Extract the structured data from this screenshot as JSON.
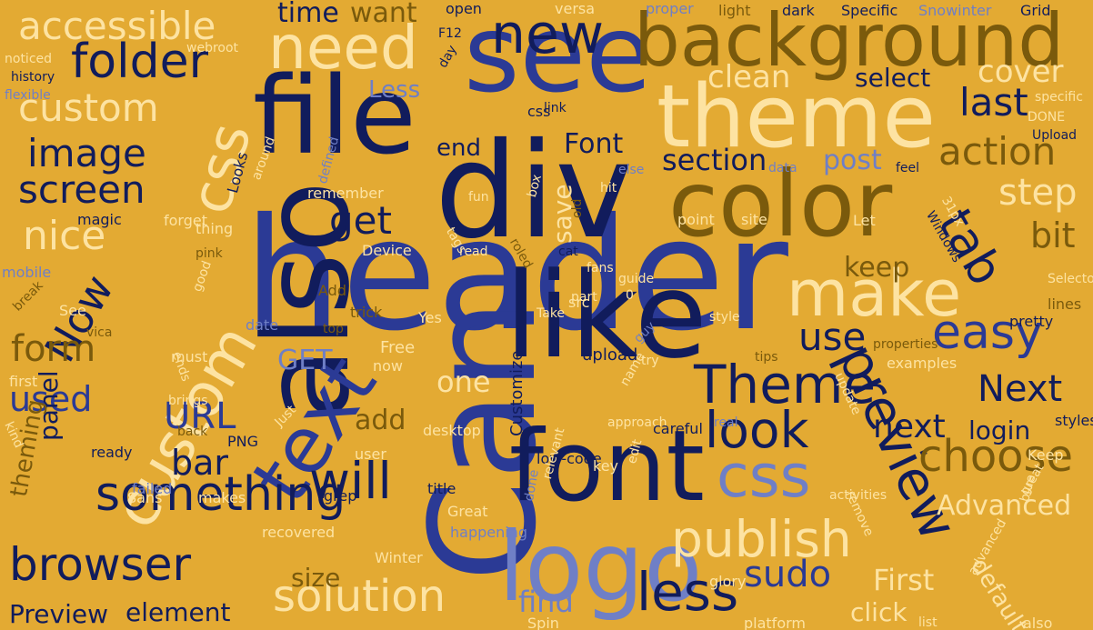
{
  "colors": {
    "background": "#e3aa33",
    "navy": "#111c5c",
    "blue": "#2b3a95",
    "periwinkle": "#6f7fc6",
    "olive": "#7a5a0c",
    "cream": "#fde3a2"
  },
  "words": [
    "header",
    "div",
    "Can",
    "also",
    "see",
    "file",
    "like",
    "color",
    "font",
    "background",
    "theme",
    "logo",
    "text",
    "custom",
    "css",
    "new",
    "need",
    "Theme",
    "make",
    "preview",
    "folder",
    "publish",
    "solution",
    "browser",
    "something",
    "look",
    "choose",
    "will",
    "easy",
    "tab",
    "accessible",
    "image",
    "screen",
    "nice",
    "Now",
    "get",
    "action",
    "step",
    "section",
    "Next",
    "css",
    "less",
    "custom",
    "form",
    "used",
    "URL",
    "bar",
    "last",
    "use",
    "clean",
    "select",
    "cover",
    "Font",
    "post",
    "next",
    "end",
    "bit",
    "keep",
    "sudo",
    "find",
    "one",
    "First",
    "login",
    "Advanced",
    "default",
    "panel",
    "add",
    "size",
    "element",
    "Preview",
    "click",
    "upload",
    "theming",
    "time",
    "want",
    "open",
    "versa",
    "proper",
    "light",
    "dark",
    "Specific",
    "Snowinter",
    "Grid",
    "Less",
    "save",
    "Customize",
    "GET",
    "Free",
    "now",
    "history",
    "flexible",
    "noticed",
    "webroot",
    "F12",
    "day",
    "css",
    "specific",
    "DONE",
    "Upload",
    "Looks",
    "around",
    "defined",
    "else",
    "hit",
    "feel",
    "data",
    "fun",
    "box",
    "remember",
    "forget",
    "magic",
    "pink",
    "tags",
    "point",
    "site",
    "Let",
    "Windows",
    "31px",
    "thing",
    "Device",
    "cat",
    "old",
    "good",
    "mobile",
    "break",
    "Add",
    "trick",
    "roled",
    "read",
    "guide",
    "part",
    "fans",
    "0",
    "src",
    "Take",
    "Yes",
    "See",
    "vica",
    "date",
    "top",
    "style",
    "lines",
    "Selectors",
    "pretty",
    "properties",
    "must",
    "tips",
    "examples",
    "first",
    "brings",
    "Just",
    "name",
    "guy",
    "try",
    "approach",
    "real",
    "styles",
    "desktop",
    "back",
    "PNG",
    "ready",
    "user",
    "careful",
    "Keep",
    "failed",
    "low-code",
    "key",
    "title",
    "relevant",
    "update",
    "Sans",
    "makes",
    "grep",
    "done",
    "Great",
    "edit",
    "activities",
    "kind",
    "happening",
    "remove",
    "great",
    "blue",
    "recovered",
    "Winter",
    "glory",
    "advanced",
    "Spin",
    "platform",
    "list",
    "also",
    "ends",
    "link"
  ]
}
